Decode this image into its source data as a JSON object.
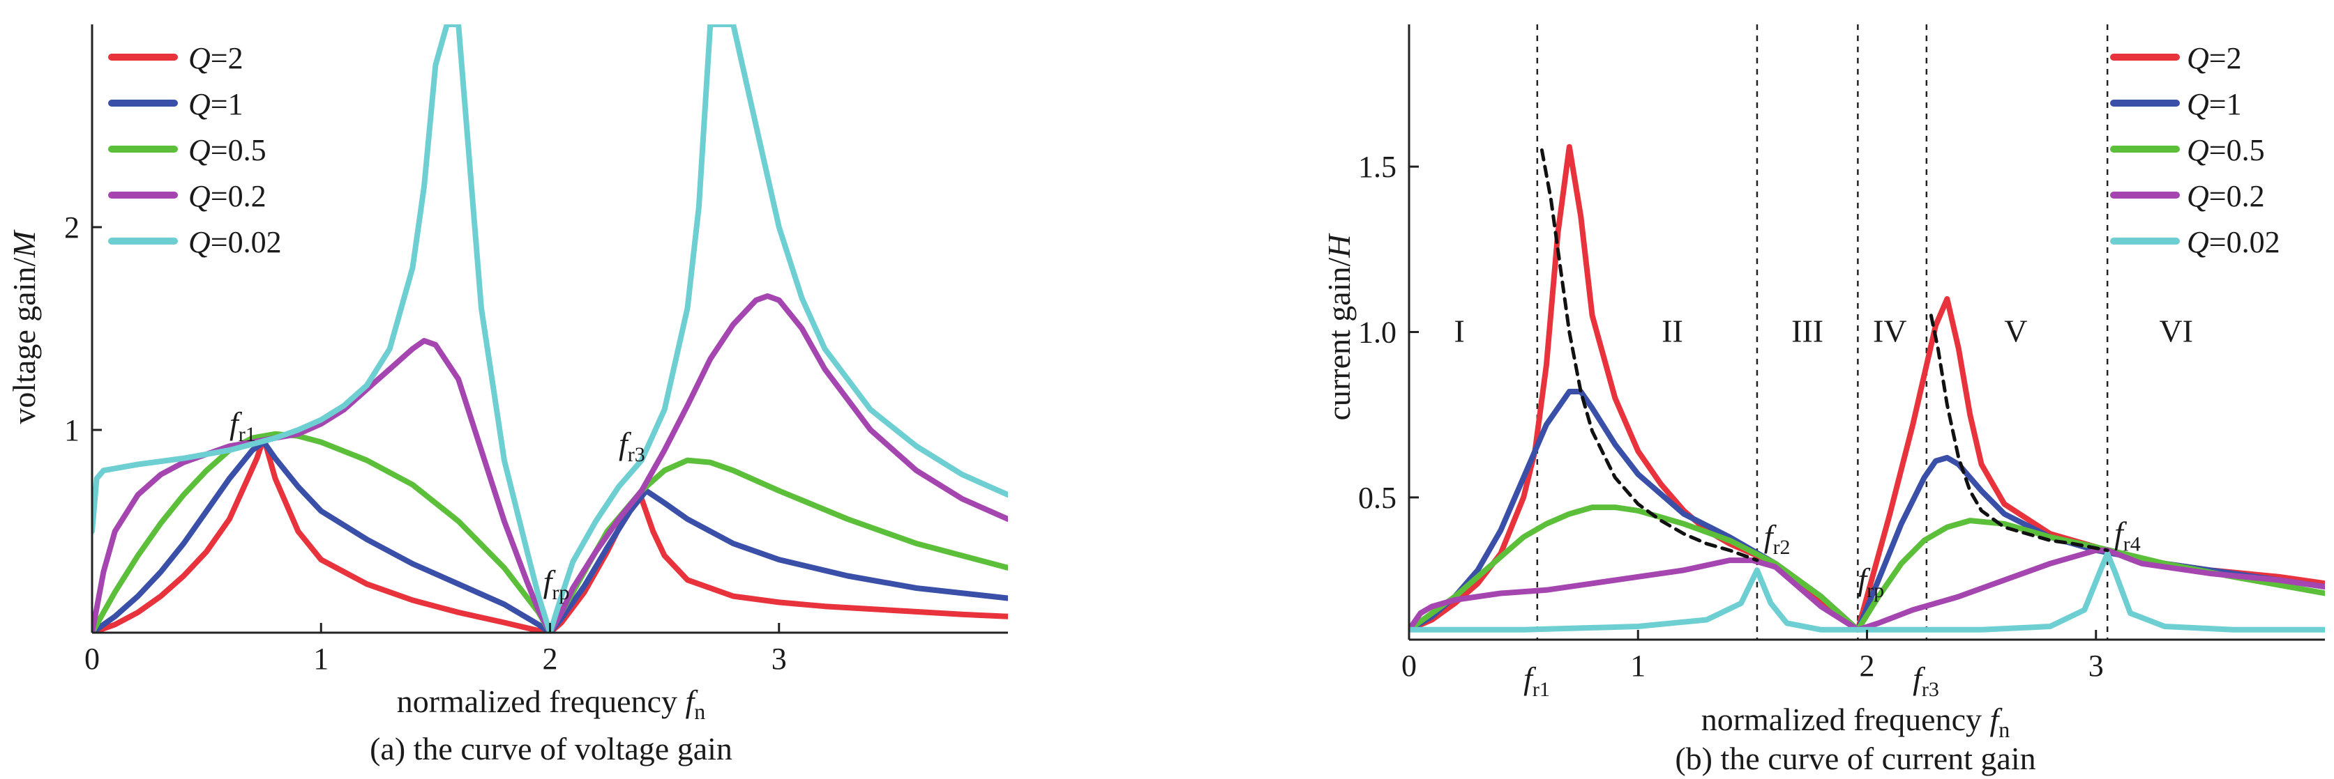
{
  "chart_data": [
    {
      "id": "a",
      "type": "line",
      "caption": "(a) the curve of voltage gain",
      "xlabel": "normalized frequency",
      "xlabel_var": "f",
      "xlabel_sub": "n",
      "ylabel": "voltage gain/",
      "ylabel_var": "M",
      "xlim": [
        0,
        4
      ],
      "ylim": [
        0,
        3
      ],
      "xticks": [
        0,
        1,
        2,
        3
      ],
      "yticks": [
        1,
        2
      ],
      "legend_position": "top-left",
      "series": [
        {
          "name": "Q=2",
          "q": "2",
          "color": "#e8323c",
          "x": [
            0,
            0.1,
            0.2,
            0.3,
            0.4,
            0.5,
            0.6,
            0.68,
            0.72,
            0.75,
            0.8,
            0.9,
            1,
            1.2,
            1.4,
            1.6,
            1.8,
            1.95,
            2,
            2.05,
            2.15,
            2.25,
            2.33,
            2.37,
            2.4,
            2.45,
            2.5,
            2.6,
            2.8,
            3,
            3.2,
            3.5,
            3.8,
            4
          ],
          "y": [
            0,
            0.04,
            0.1,
            0.18,
            0.28,
            0.4,
            0.56,
            0.76,
            0.86,
            0.96,
            0.76,
            0.5,
            0.36,
            0.24,
            0.16,
            0.1,
            0.05,
            0.01,
            0,
            0.05,
            0.2,
            0.4,
            0.58,
            0.64,
            0.66,
            0.5,
            0.38,
            0.26,
            0.18,
            0.15,
            0.13,
            0.11,
            0.09,
            0.08
          ]
        },
        {
          "name": "Q=1",
          "q": "1",
          "color": "#3a4fa8",
          "x": [
            0,
            0.1,
            0.2,
            0.3,
            0.4,
            0.5,
            0.6,
            0.7,
            0.75,
            0.8,
            0.9,
            1,
            1.2,
            1.4,
            1.6,
            1.8,
            1.95,
            2,
            2.05,
            2.15,
            2.25,
            2.35,
            2.42,
            2.5,
            2.6,
            2.8,
            3,
            3.3,
            3.6,
            4
          ],
          "y": [
            0,
            0.08,
            0.18,
            0.3,
            0.44,
            0.6,
            0.76,
            0.9,
            0.94,
            0.86,
            0.72,
            0.6,
            0.46,
            0.34,
            0.24,
            0.14,
            0.04,
            0,
            0.07,
            0.23,
            0.42,
            0.6,
            0.7,
            0.64,
            0.56,
            0.44,
            0.36,
            0.28,
            0.22,
            0.17
          ]
        },
        {
          "name": "Q=0.5",
          "q": "0.5",
          "color": "#5cbf3a",
          "x": [
            0,
            0.1,
            0.2,
            0.3,
            0.4,
            0.5,
            0.6,
            0.7,
            0.8,
            0.9,
            1,
            1.2,
            1.4,
            1.6,
            1.8,
            1.95,
            2,
            2.05,
            2.15,
            2.25,
            2.4,
            2.5,
            2.6,
            2.7,
            2.8,
            3,
            3.3,
            3.6,
            4
          ],
          "y": [
            0,
            0.2,
            0.38,
            0.54,
            0.68,
            0.8,
            0.9,
            0.96,
            0.98,
            0.97,
            0.94,
            0.85,
            0.73,
            0.55,
            0.32,
            0.1,
            0,
            0.1,
            0.3,
            0.5,
            0.7,
            0.8,
            0.85,
            0.84,
            0.8,
            0.7,
            0.56,
            0.44,
            0.32
          ]
        },
        {
          "name": "Q=0.2",
          "q": "0.2",
          "color": "#a546b0",
          "x": [
            0,
            0.05,
            0.1,
            0.2,
            0.3,
            0.4,
            0.5,
            0.6,
            0.7,
            0.8,
            0.9,
            1,
            1.1,
            1.2,
            1.3,
            1.4,
            1.45,
            1.5,
            1.6,
            1.7,
            1.8,
            1.9,
            1.95,
            2,
            2.05,
            2.1,
            2.2,
            2.3,
            2.4,
            2.5,
            2.6,
            2.7,
            2.8,
            2.9,
            2.95,
            3,
            3.1,
            3.2,
            3.4,
            3.6,
            3.8,
            4
          ],
          "y": [
            0,
            0.3,
            0.5,
            0.68,
            0.78,
            0.84,
            0.88,
            0.92,
            0.94,
            0.96,
            0.98,
            1.03,
            1.1,
            1.2,
            1.3,
            1.4,
            1.44,
            1.42,
            1.25,
            0.9,
            0.55,
            0.25,
            0.11,
            0,
            0.1,
            0.22,
            0.4,
            0.56,
            0.7,
            0.9,
            1.12,
            1.35,
            1.52,
            1.64,
            1.66,
            1.64,
            1.5,
            1.3,
            1.0,
            0.8,
            0.66,
            0.56
          ]
        },
        {
          "name": "Q=0.02",
          "q": "0.02",
          "color": "#6ecfd3",
          "x": [
            0,
            0.02,
            0.05,
            0.1,
            0.2,
            0.4,
            0.6,
            0.7,
            0.8,
            0.9,
            1,
            1.1,
            1.2,
            1.3,
            1.4,
            1.45,
            1.5,
            1.55,
            1.6,
            1.7,
            1.8,
            1.9,
            1.95,
            2,
            2.05,
            2.1,
            2.2,
            2.3,
            2.4,
            2.5,
            2.6,
            2.65,
            2.7,
            2.8,
            2.9,
            3,
            3.1,
            3.2,
            3.4,
            3.6,
            3.8,
            4
          ],
          "y": [
            0.5,
            0.76,
            0.8,
            0.81,
            0.83,
            0.86,
            0.9,
            0.93,
            0.96,
            1.0,
            1.05,
            1.12,
            1.22,
            1.4,
            1.8,
            2.2,
            2.8,
            3.0,
            3.0,
            1.6,
            0.85,
            0.4,
            0.18,
            0,
            0.18,
            0.35,
            0.55,
            0.72,
            0.85,
            1.1,
            1.6,
            2.1,
            3.0,
            3.0,
            2.5,
            2.0,
            1.65,
            1.4,
            1.1,
            0.92,
            0.78,
            0.68
          ]
        }
      ],
      "annotations": [
        {
          "var": "f",
          "sub": "r1",
          "x": 0.6,
          "y": 0.98
        },
        {
          "var": "f",
          "sub": "rp",
          "x": 1.97,
          "y": 0.2
        },
        {
          "var": "f",
          "sub": "r3",
          "x": 2.3,
          "y": 0.88
        }
      ]
    },
    {
      "id": "b",
      "type": "line",
      "caption": "(b) the curve of current gain",
      "xlabel": "normalized frequency",
      "xlabel_var": "f",
      "xlabel_sub": "n",
      "ylabel": "current gain/",
      "ylabel_var": "H",
      "xlim": [
        0,
        4
      ],
      "ylim": [
        0.07,
        1.93
      ],
      "xticks": [
        0,
        1,
        2,
        3
      ],
      "yticks": [
        0.5,
        1.0,
        1.5
      ],
      "ytick_labels": [
        "0.5",
        "1.0",
        "1.5"
      ],
      "legend_position": "top-right",
      "vlines": [
        0.56,
        1.52,
        1.96,
        2.26,
        3.05
      ],
      "series": [
        {
          "name": "Q=2",
          "q": "2",
          "color": "#e8323c",
          "x": [
            0,
            0.1,
            0.2,
            0.3,
            0.4,
            0.5,
            0.55,
            0.6,
            0.65,
            0.7,
            0.75,
            0.8,
            0.9,
            1.0,
            1.1,
            1.2,
            1.3,
            1.4,
            1.5,
            1.6,
            1.7,
            1.8,
            1.9,
            1.96,
            2.0,
            2.1,
            2.2,
            2.3,
            2.35,
            2.4,
            2.45,
            2.5,
            2.6,
            2.8,
            3.0,
            3.2,
            3.5,
            3.8,
            4
          ],
          "y": [
            0.1,
            0.13,
            0.18,
            0.24,
            0.33,
            0.5,
            0.64,
            0.9,
            1.3,
            1.56,
            1.35,
            1.05,
            0.8,
            0.64,
            0.54,
            0.46,
            0.4,
            0.36,
            0.33,
            0.3,
            0.25,
            0.19,
            0.13,
            0.1,
            0.2,
            0.45,
            0.72,
            1.02,
            1.1,
            0.95,
            0.75,
            0.6,
            0.48,
            0.39,
            0.35,
            0.31,
            0.28,
            0.26,
            0.24
          ]
        },
        {
          "name": "Q=1",
          "q": "1",
          "color": "#3a4fa8",
          "x": [
            0,
            0.1,
            0.2,
            0.3,
            0.4,
            0.5,
            0.6,
            0.7,
            0.75,
            0.8,
            0.9,
            1.0,
            1.2,
            1.4,
            1.6,
            1.8,
            1.96,
            2.05,
            2.15,
            2.25,
            2.3,
            2.35,
            2.4,
            2.5,
            2.6,
            2.8,
            3.0,
            3.3,
            3.6,
            4
          ],
          "y": [
            0.1,
            0.14,
            0.2,
            0.28,
            0.4,
            0.56,
            0.72,
            0.82,
            0.82,
            0.77,
            0.66,
            0.57,
            0.45,
            0.38,
            0.3,
            0.2,
            0.1,
            0.25,
            0.42,
            0.56,
            0.61,
            0.62,
            0.6,
            0.52,
            0.45,
            0.38,
            0.34,
            0.3,
            0.27,
            0.23
          ]
        },
        {
          "name": "Q=0.5",
          "q": "0.5",
          "color": "#5cbf3a",
          "x": [
            0,
            0.1,
            0.2,
            0.3,
            0.4,
            0.5,
            0.6,
            0.7,
            0.8,
            0.9,
            1.0,
            1.2,
            1.4,
            1.6,
            1.8,
            1.96,
            2.05,
            2.15,
            2.25,
            2.35,
            2.45,
            2.6,
            2.8,
            3.0,
            3.3,
            3.6,
            4
          ],
          "y": [
            0.1,
            0.15,
            0.2,
            0.26,
            0.32,
            0.38,
            0.42,
            0.45,
            0.47,
            0.47,
            0.46,
            0.42,
            0.37,
            0.3,
            0.2,
            0.1,
            0.2,
            0.3,
            0.37,
            0.41,
            0.43,
            0.42,
            0.38,
            0.35,
            0.3,
            0.26,
            0.21
          ]
        },
        {
          "name": "Q=0.2",
          "q": "0.2",
          "color": "#a546b0",
          "x": [
            0,
            0.05,
            0.1,
            0.2,
            0.4,
            0.6,
            0.8,
            1.0,
            1.2,
            1.4,
            1.5,
            1.6,
            1.7,
            1.8,
            1.96,
            2.05,
            2.2,
            2.4,
            2.6,
            2.8,
            3.0,
            3.05,
            3.2,
            3.5,
            3.8,
            4
          ],
          "y": [
            0.1,
            0.15,
            0.17,
            0.19,
            0.21,
            0.22,
            0.24,
            0.26,
            0.28,
            0.31,
            0.31,
            0.29,
            0.23,
            0.17,
            0.1,
            0.12,
            0.16,
            0.2,
            0.25,
            0.3,
            0.34,
            0.34,
            0.3,
            0.27,
            0.25,
            0.23
          ]
        },
        {
          "name": "Q=0.02",
          "q": "0.02",
          "color": "#6ecfd3",
          "x": [
            0,
            0.5,
            1.0,
            1.3,
            1.45,
            1.52,
            1.58,
            1.65,
            1.8,
            1.96,
            2.1,
            2.5,
            2.8,
            2.95,
            3.02,
            3.05,
            3.08,
            3.15,
            3.3,
            3.6,
            4
          ],
          "y": [
            0.1,
            0.1,
            0.11,
            0.13,
            0.18,
            0.28,
            0.18,
            0.12,
            0.1,
            0.1,
            0.1,
            0.1,
            0.11,
            0.16,
            0.28,
            0.33,
            0.28,
            0.15,
            0.11,
            0.1,
            0.1
          ]
        },
        {
          "name": "envelope-1",
          "color": "#111111",
          "dashed": true,
          "legend": false,
          "x": [
            0.58,
            0.62,
            0.66,
            0.7,
            0.75,
            0.8,
            0.9,
            1.0,
            1.1,
            1.2,
            1.3,
            1.4,
            1.52
          ],
          "y": [
            1.55,
            1.4,
            1.2,
            1.0,
            0.82,
            0.7,
            0.56,
            0.48,
            0.43,
            0.39,
            0.36,
            0.34,
            0.31
          ]
        },
        {
          "name": "envelope-2",
          "color": "#111111",
          "dashed": true,
          "legend": false,
          "x": [
            2.28,
            2.31,
            2.35,
            2.4,
            2.45,
            2.5,
            2.6,
            2.7,
            2.8,
            2.9,
            3.05
          ],
          "y": [
            1.05,
            0.95,
            0.78,
            0.62,
            0.52,
            0.46,
            0.41,
            0.39,
            0.37,
            0.36,
            0.34
          ]
        }
      ],
      "regions": [
        {
          "label": "I",
          "x": 0.22,
          "y": 1.0
        },
        {
          "label": "II",
          "x": 1.15,
          "y": 1.0
        },
        {
          "label": "III",
          "x": 1.74,
          "y": 1.0
        },
        {
          "label": "IV",
          "x": 2.1,
          "y": 1.0
        },
        {
          "label": "V",
          "x": 2.65,
          "y": 1.0
        },
        {
          "label": "VI",
          "x": 3.35,
          "y": 1.0
        }
      ],
      "annotations": [
        {
          "var": "f",
          "sub": "r1",
          "x": 0.5,
          "y": -0.08
        },
        {
          "var": "f",
          "sub": "r2",
          "x": 1.55,
          "y": 0.35
        },
        {
          "var": "f",
          "sub": "rp",
          "x": 1.96,
          "y": 0.22
        },
        {
          "var": "f",
          "sub": "r3",
          "x": 2.2,
          "y": -0.08
        },
        {
          "var": "f",
          "sub": "r4",
          "x": 3.08,
          "y": 0.36
        }
      ]
    }
  ]
}
